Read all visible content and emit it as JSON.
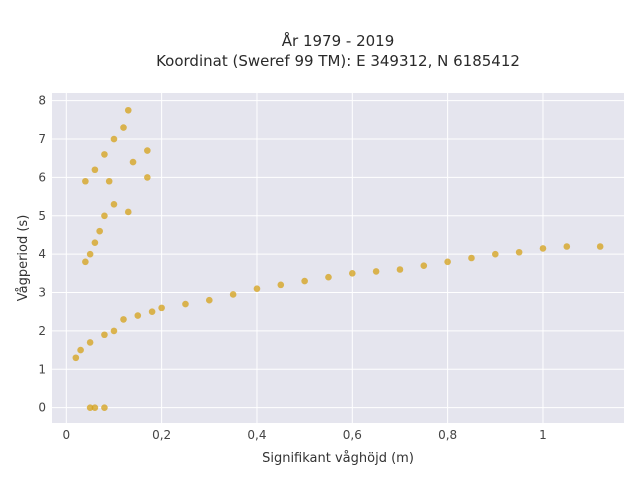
{
  "chart_data": {
    "type": "scatter",
    "title_line1": "År 1979 - 2019",
    "title_line2": "Koordinat (Sweref 99 TM): E 349312, N 6185412",
    "xlabel": "Signifikant våghöjd (m)",
    "ylabel": "Vågperiod (s)",
    "xlim": [
      -0.03,
      1.17
    ],
    "ylim": [
      -0.4,
      8.2
    ],
    "x_ticks": [
      0,
      0.2,
      0.4,
      0.6,
      0.8,
      1
    ],
    "x_tick_labels": [
      "0",
      "0,2",
      "0,4",
      "0,6",
      "0,8",
      "1"
    ],
    "y_ticks": [
      0,
      1,
      2,
      3,
      4,
      5,
      6,
      7,
      8
    ],
    "y_tick_labels": [
      "0",
      "1",
      "2",
      "3",
      "4",
      "5",
      "6",
      "7",
      "8"
    ],
    "grid": true,
    "point_color": "#D4A017",
    "plot_background": "#E5E5EE",
    "points": [
      [
        0.05,
        0.0
      ],
      [
        0.06,
        0.0
      ],
      [
        0.08,
        0.0
      ],
      [
        0.02,
        1.3
      ],
      [
        0.03,
        1.5
      ],
      [
        0.05,
        1.7
      ],
      [
        0.08,
        1.9
      ],
      [
        0.1,
        2.0
      ],
      [
        0.12,
        2.3
      ],
      [
        0.15,
        2.4
      ],
      [
        0.18,
        2.5
      ],
      [
        0.2,
        2.6
      ],
      [
        0.25,
        2.7
      ],
      [
        0.3,
        2.8
      ],
      [
        0.35,
        2.95
      ],
      [
        0.4,
        3.1
      ],
      [
        0.45,
        3.2
      ],
      [
        0.5,
        3.3
      ],
      [
        0.55,
        3.4
      ],
      [
        0.6,
        3.5
      ],
      [
        0.65,
        3.55
      ],
      [
        0.7,
        3.6
      ],
      [
        0.75,
        3.7
      ],
      [
        0.8,
        3.8
      ],
      [
        0.85,
        3.9
      ],
      [
        0.9,
        4.0
      ],
      [
        0.95,
        4.05
      ],
      [
        1.0,
        4.15
      ],
      [
        1.05,
        4.2
      ],
      [
        1.12,
        4.2
      ],
      [
        0.04,
        3.8
      ],
      [
        0.05,
        4.0
      ],
      [
        0.06,
        4.3
      ],
      [
        0.07,
        4.6
      ],
      [
        0.08,
        5.0
      ],
      [
        0.1,
        5.3
      ],
      [
        0.04,
        5.9
      ],
      [
        0.06,
        6.2
      ],
      [
        0.08,
        6.6
      ],
      [
        0.1,
        7.0
      ],
      [
        0.12,
        7.3
      ],
      [
        0.13,
        7.75
      ],
      [
        0.14,
        6.4
      ],
      [
        0.17,
        6.7
      ],
      [
        0.17,
        6.0
      ],
      [
        0.13,
        5.1
      ],
      [
        0.09,
        5.9
      ]
    ]
  }
}
